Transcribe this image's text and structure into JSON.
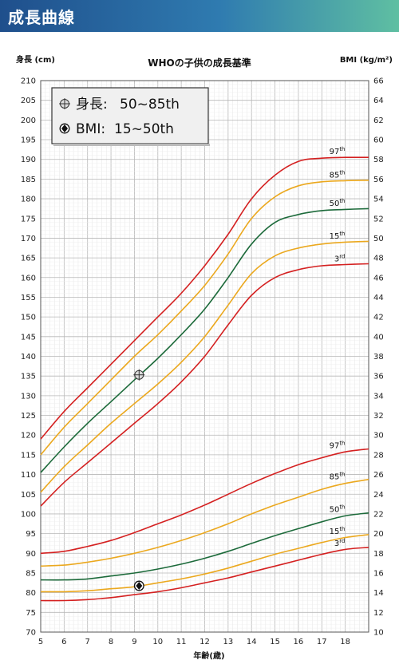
{
  "header": {
    "title": "成長曲線"
  },
  "chart_data": {
    "type": "line",
    "title": "WHOの子供の成長基準",
    "xlabel": "年齢(歳)",
    "ylabel_left": "身長 (cm)",
    "ylabel_right": "BMI (kg/m²)",
    "xlim": [
      5,
      19
    ],
    "ylim_left": [
      70,
      210
    ],
    "ylim_right": [
      10,
      66
    ],
    "x_ticks": [
      5,
      6,
      7,
      8,
      9,
      10,
      11,
      12,
      13,
      14,
      15,
      16,
      17,
      18
    ],
    "grid": true,
    "colors": {
      "p97": "#d42020",
      "p85": "#eba81e",
      "p50": "#1c6a3a",
      "p15": "#eba81e",
      "p3": "#d42020"
    },
    "x": [
      5,
      6,
      7,
      8,
      9,
      10,
      11,
      12,
      13,
      14,
      15,
      16,
      17,
      18,
      19
    ],
    "height_series": [
      {
        "name": "97th",
        "values": [
          119,
          126,
          132,
          138,
          144,
          150,
          156,
          163,
          171,
          180,
          186,
          189.5,
          190.3,
          190.5,
          190.5
        ]
      },
      {
        "name": "85th",
        "values": [
          115,
          122,
          128,
          134,
          140,
          145.5,
          151.5,
          158,
          166,
          175,
          180.5,
          183.3,
          184.3,
          184.6,
          184.7
        ]
      },
      {
        "name": "50th",
        "values": [
          110.5,
          117,
          123,
          128.5,
          134,
          139.5,
          145.5,
          152,
          160,
          168.5,
          174,
          176,
          177,
          177.3,
          177.5
        ]
      },
      {
        "name": "15th",
        "values": [
          105.5,
          112,
          117.5,
          123,
          128,
          133,
          138.5,
          145,
          153,
          161,
          165.5,
          167.5,
          168.5,
          169,
          169.2
        ]
      },
      {
        "name": "3rd",
        "values": [
          102,
          108,
          113,
          118,
          123,
          128,
          133.5,
          140,
          148,
          155.5,
          160,
          162,
          163,
          163.3,
          163.5
        ]
      }
    ],
    "bmi_series": [
      {
        "name": "97th",
        "values": [
          18,
          18.2,
          18.7,
          19.3,
          20.1,
          21,
          21.9,
          22.9,
          24,
          25.1,
          26.1,
          27,
          27.7,
          28.3,
          28.6
        ]
      },
      {
        "name": "85th",
        "values": [
          16.7,
          16.8,
          17.1,
          17.5,
          18,
          18.6,
          19.3,
          20.1,
          21,
          22,
          22.9,
          23.7,
          24.5,
          25.1,
          25.5
        ]
      },
      {
        "name": "50th",
        "values": [
          15.3,
          15.3,
          15.4,
          15.7,
          16,
          16.4,
          16.9,
          17.5,
          18.2,
          19,
          19.8,
          20.5,
          21.2,
          21.8,
          22.1
        ]
      },
      {
        "name": "15th",
        "values": [
          14.1,
          14.1,
          14.2,
          14.4,
          14.6,
          15,
          15.4,
          15.9,
          16.5,
          17.2,
          17.9,
          18.5,
          19.1,
          19.6,
          19.9
        ]
      },
      {
        "name": "3rd",
        "values": [
          13.2,
          13.2,
          13.3,
          13.5,
          13.8,
          14.1,
          14.5,
          15,
          15.5,
          16.1,
          16.7,
          17.3,
          17.9,
          18.4,
          18.6
        ]
      }
    ],
    "points": [
      {
        "name": "身長",
        "x": 9.2,
        "y": 135.3,
        "axis": "left",
        "icon": "crosshair-circle-icon"
      },
      {
        "name": "BMI",
        "x": 9.2,
        "y": 14.7,
        "axis": "right",
        "icon": "filled-diamond-circle-icon"
      }
    ],
    "legend": {
      "placement": "top-left",
      "items": [
        {
          "label": "身長:",
          "value": "50~85th",
          "icon": "crosshair-circle-icon"
        },
        {
          "label": "BMI:",
          "value": "15~50th",
          "icon": "filled-diamond-circle-icon"
        }
      ]
    }
  }
}
